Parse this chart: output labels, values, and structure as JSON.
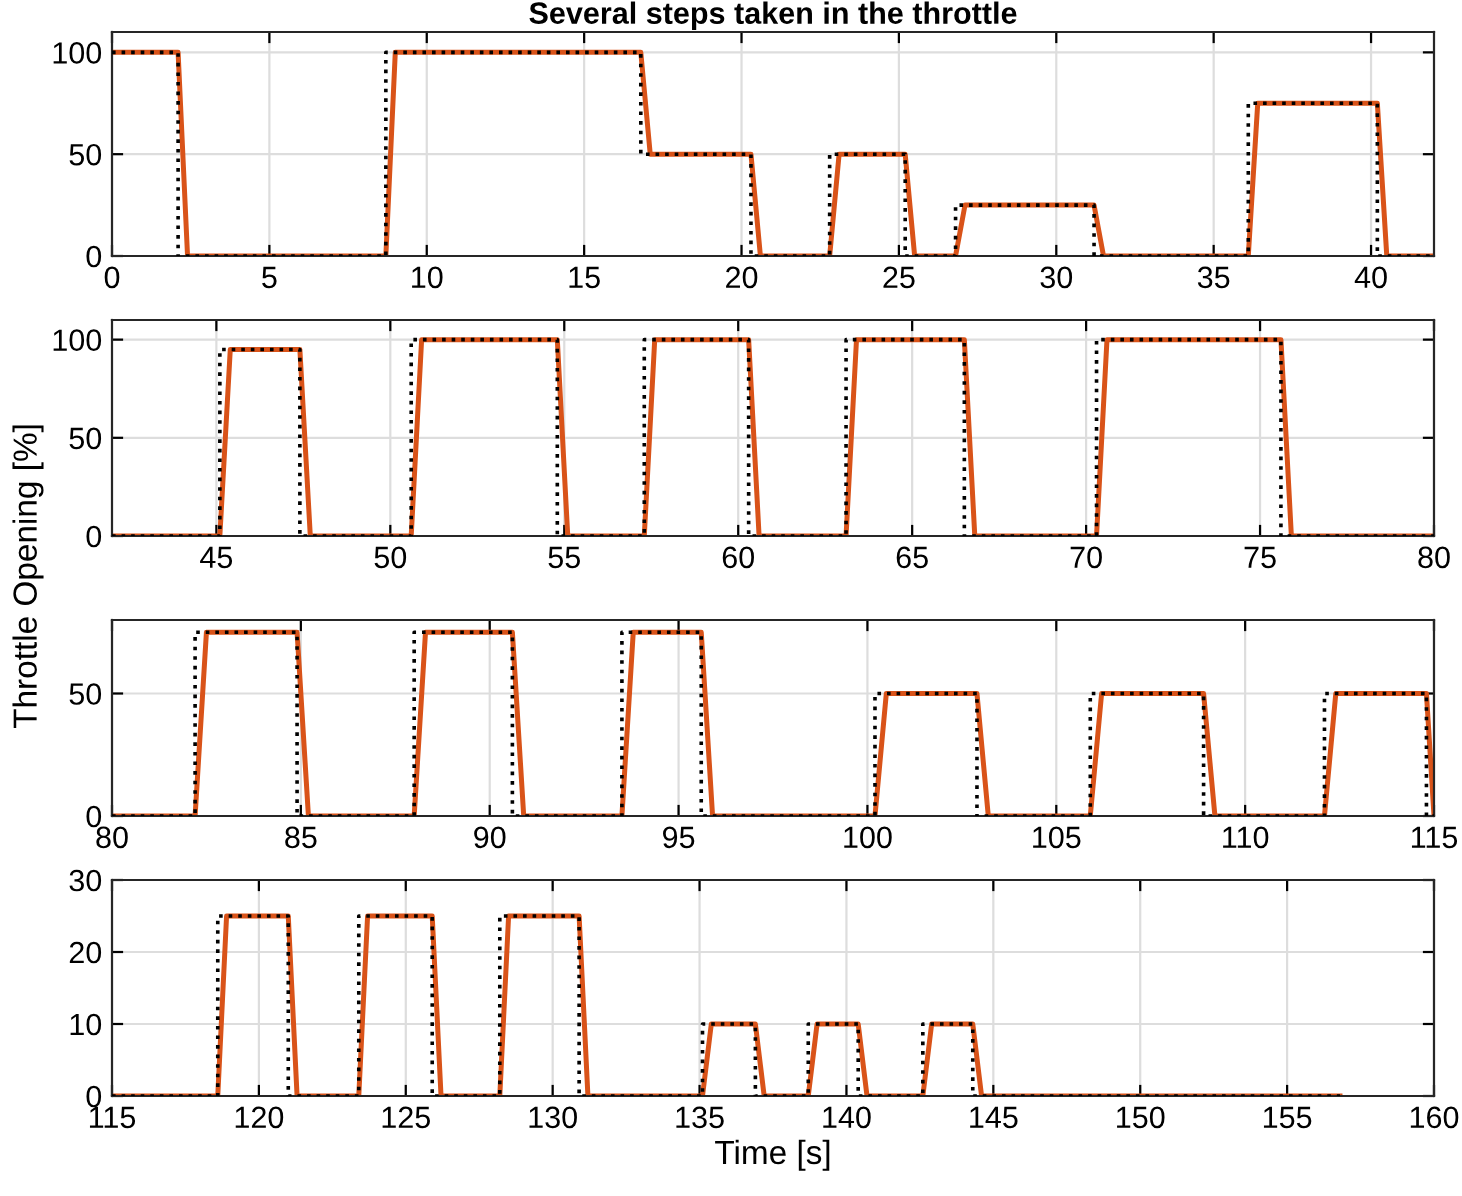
{
  "chart_data": [
    {
      "type": "line",
      "title": "Several steps taken in the throttle",
      "xlim": [
        0,
        42
      ],
      "xticks": [
        0,
        5,
        10,
        15,
        20,
        25,
        30,
        35,
        40
      ],
      "ylim": [
        0,
        110
      ],
      "yticks": [
        0,
        50,
        100
      ],
      "grid": true,
      "series": [
        {
          "color": "#000000",
          "line_style": "dotted",
          "x": [
            0,
            2.1,
            2.1,
            8.7,
            8.7,
            16.8,
            16.8,
            20.3,
            20.3,
            22.8,
            22.8,
            25.2,
            25.2,
            26.8,
            26.8,
            31.2,
            31.2,
            36.1,
            36.1,
            40.2,
            40.2,
            42
          ],
          "values": [
            100,
            100,
            0,
            0,
            100,
            100,
            50,
            50,
            0,
            0,
            50,
            50,
            0,
            0,
            25,
            25,
            0,
            0,
            75,
            75,
            0,
            0
          ]
        },
        {
          "color": "#d95319",
          "line_style": "solid",
          "x": [
            0,
            2.1,
            2.4,
            8.7,
            9.0,
            16.8,
            17.1,
            20.3,
            20.6,
            22.8,
            23.1,
            25.2,
            25.5,
            26.8,
            27.1,
            31.2,
            31.5,
            36.1,
            36.4,
            40.2,
            40.5,
            42
          ],
          "values": [
            100,
            100,
            0,
            0,
            100,
            100,
            50,
            50,
            0,
            0,
            50,
            50,
            0,
            0,
            25,
            25,
            0,
            0,
            75,
            75,
            0,
            0
          ]
        }
      ]
    },
    {
      "type": "line",
      "ylabel": "Throttle Opening [%]",
      "xlim": [
        42,
        80
      ],
      "xticks": [
        45,
        50,
        55,
        60,
        65,
        70,
        75,
        80
      ],
      "ylim": [
        0,
        110
      ],
      "yticks": [
        0,
        50,
        100
      ],
      "grid": true,
      "series": [
        {
          "color": "#000000",
          "line_style": "dotted",
          "x": [
            42,
            45.1,
            45.1,
            47.4,
            47.4,
            50.6,
            50.6,
            54.8,
            54.8,
            57.3,
            57.3,
            60.3,
            60.3,
            63.1,
            63.1,
            66.5,
            66.5,
            70.3,
            70.3,
            75.6,
            75.6,
            80
          ],
          "values": [
            0,
            0,
            95,
            95,
            0,
            0,
            100,
            100,
            0,
            0,
            100,
            100,
            0,
            0,
            100,
            100,
            0,
            0,
            100,
            100,
            0,
            0
          ]
        },
        {
          "color": "#d95319",
          "line_style": "solid",
          "x": [
            42,
            45.1,
            45.4,
            47.4,
            47.7,
            50.6,
            50.9,
            54.8,
            55.1,
            57.3,
            57.6,
            60.3,
            60.6,
            63.1,
            63.4,
            66.5,
            66.8,
            70.3,
            70.6,
            75.6,
            75.9,
            80
          ],
          "values": [
            0,
            0,
            95,
            95,
            0,
            0,
            100,
            100,
            0,
            0,
            100,
            100,
            0,
            0,
            100,
            100,
            0,
            0,
            100,
            100,
            0,
            0
          ]
        }
      ]
    },
    {
      "type": "line",
      "xlim": [
        80,
        115
      ],
      "xticks": [
        80,
        85,
        90,
        95,
        100,
        105,
        110,
        115
      ],
      "ylim": [
        0,
        80
      ],
      "yticks": [
        0,
        50
      ],
      "grid": true,
      "series": [
        {
          "color": "#000000",
          "line_style": "dotted",
          "x": [
            80,
            82.2,
            82.2,
            84.9,
            84.9,
            88.0,
            88.0,
            90.6,
            90.6,
            93.5,
            93.5,
            95.6,
            95.6,
            100.2,
            100.2,
            102.9,
            102.9,
            105.9,
            105.9,
            108.9,
            108.9,
            112.1,
            112.1,
            114.8,
            114.8,
            115
          ],
          "values": [
            0,
            0,
            75,
            75,
            0,
            0,
            75,
            75,
            0,
            0,
            75,
            75,
            0,
            0,
            50,
            50,
            0,
            0,
            50,
            50,
            0,
            0,
            50,
            50,
            0,
            0
          ]
        },
        {
          "color": "#d95319",
          "line_style": "solid",
          "x": [
            80,
            82.2,
            82.5,
            84.9,
            85.2,
            88.0,
            88.3,
            90.6,
            90.9,
            93.5,
            93.8,
            95.6,
            95.9,
            100.2,
            100.5,
            102.9,
            103.2,
            105.9,
            106.2,
            108.9,
            109.2,
            112.1,
            112.4,
            114.8,
            115
          ],
          "values": [
            0,
            0,
            75,
            75,
            0,
            0,
            75,
            75,
            0,
            0,
            75,
            75,
            0,
            0,
            50,
            50,
            0,
            0,
            50,
            50,
            0,
            0,
            50,
            50,
            0
          ]
        }
      ]
    },
    {
      "type": "line",
      "xlabel": "Time [s]",
      "xlim": [
        115,
        160
      ],
      "xticks": [
        115,
        120,
        125,
        130,
        135,
        140,
        145,
        150,
        155,
        160
      ],
      "ylim": [
        0,
        30
      ],
      "yticks": [
        0,
        10,
        20,
        30
      ],
      "grid": true,
      "series": [
        {
          "color": "#000000",
          "line_style": "dotted",
          "x": [
            115,
            118.6,
            118.6,
            121.0,
            121.0,
            123.4,
            123.4,
            125.9,
            125.9,
            128.2,
            128.2,
            130.9,
            130.9,
            135.1,
            135.1,
            136.9,
            136.9,
            138.7,
            138.7,
            140.4,
            140.4,
            142.6,
            142.6,
            144.3,
            144.3,
            156.8
          ],
          "values": [
            0,
            0,
            25,
            25,
            0,
            0,
            25,
            25,
            0,
            0,
            25,
            25,
            0,
            0,
            10,
            10,
            0,
            0,
            10,
            10,
            0,
            0,
            10,
            10,
            0,
            0
          ]
        },
        {
          "color": "#d95319",
          "line_style": "solid",
          "x": [
            115,
            118.6,
            118.9,
            121.0,
            121.3,
            123.4,
            123.7,
            125.9,
            126.2,
            128.2,
            128.5,
            130.9,
            131.2,
            135.1,
            135.4,
            136.9,
            137.2,
            138.7,
            139.0,
            140.4,
            140.7,
            142.6,
            142.9,
            144.3,
            144.6,
            156.8
          ],
          "values": [
            0,
            0,
            25,
            25,
            0,
            0,
            25,
            25,
            0,
            0,
            25,
            25,
            0,
            0,
            10,
            10,
            0,
            0,
            10,
            10,
            0,
            0,
            10,
            10,
            0,
            0
          ]
        }
      ]
    }
  ]
}
